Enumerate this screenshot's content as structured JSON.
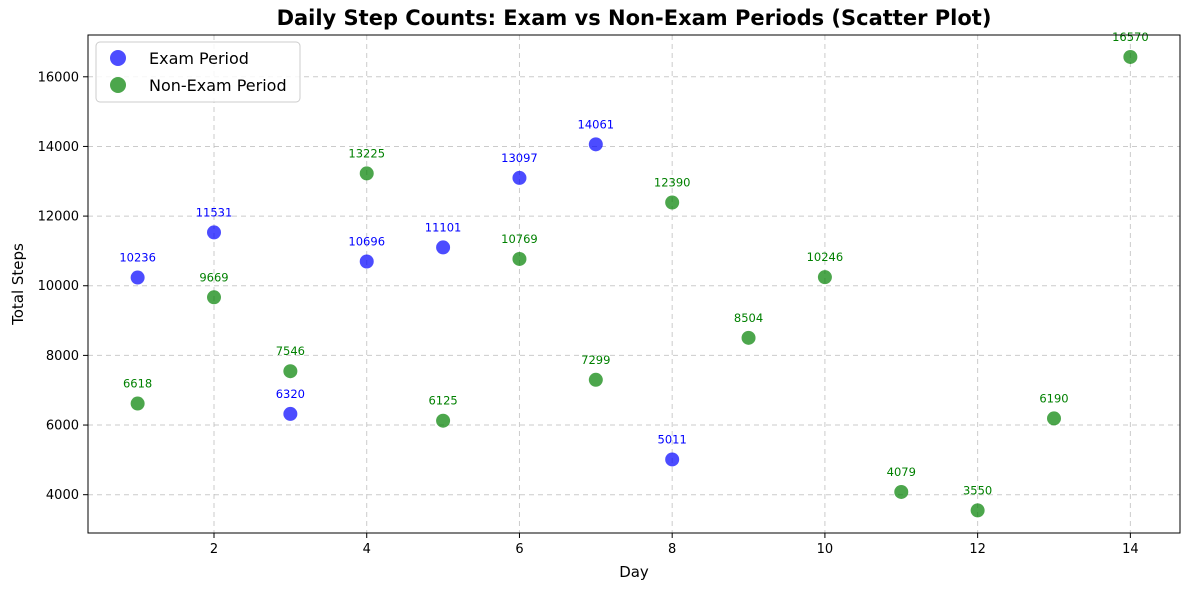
{
  "chart_data": {
    "type": "scatter",
    "title": "Daily Step Counts: Exam vs Non-Exam Periods (Scatter Plot)",
    "xlabel": "Day",
    "ylabel": "Total Steps",
    "xlim": [
      0.35,
      14.65
    ],
    "ylim": [
      2900,
      17200
    ],
    "xticks": [
      2,
      4,
      6,
      8,
      10,
      12,
      14
    ],
    "yticks": [
      4000,
      6000,
      8000,
      10000,
      12000,
      14000,
      16000
    ],
    "grid": true,
    "legend_position": "upper-left",
    "series": [
      {
        "name": "Exam Period",
        "color": "#0000ff",
        "points": [
          {
            "x": 1,
            "y": 10236
          },
          {
            "x": 2,
            "y": 11531
          },
          {
            "x": 3,
            "y": 6320
          },
          {
            "x": 4,
            "y": 10696
          },
          {
            "x": 5,
            "y": 11101
          },
          {
            "x": 6,
            "y": 13097
          },
          {
            "x": 7,
            "y": 14061
          },
          {
            "x": 8,
            "y": 5011
          }
        ]
      },
      {
        "name": "Non-Exam Period",
        "color": "#008000",
        "points": [
          {
            "x": 1,
            "y": 6618
          },
          {
            "x": 2,
            "y": 9669
          },
          {
            "x": 3,
            "y": 7546
          },
          {
            "x": 4,
            "y": 13225
          },
          {
            "x": 5,
            "y": 6125
          },
          {
            "x": 6,
            "y": 10769
          },
          {
            "x": 7,
            "y": 7299
          },
          {
            "x": 8,
            "y": 12390
          },
          {
            "x": 9,
            "y": 8504
          },
          {
            "x": 10,
            "y": 10246
          },
          {
            "x": 11,
            "y": 4079
          },
          {
            "x": 12,
            "y": 3550
          },
          {
            "x": 13,
            "y": 6190
          },
          {
            "x": 14,
            "y": 16570
          }
        ]
      }
    ]
  }
}
